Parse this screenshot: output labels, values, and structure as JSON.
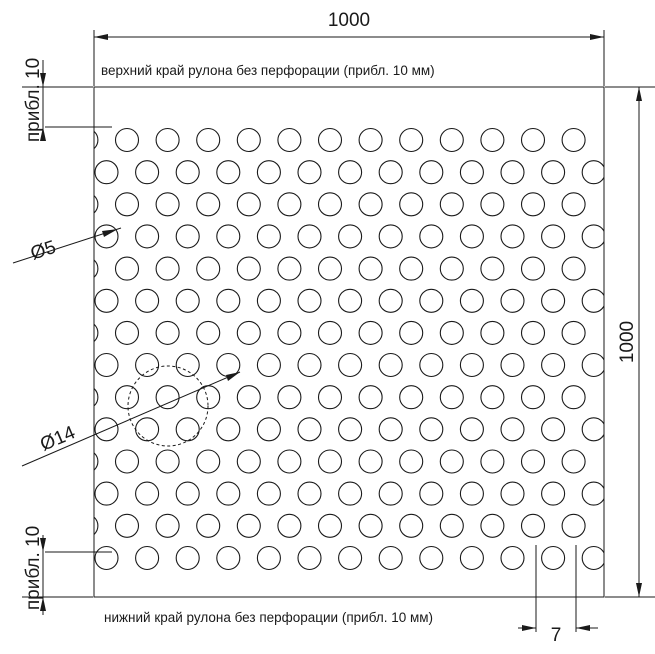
{
  "labels": {
    "width_dim": "1000",
    "height_dim": "1000",
    "top_margin_dim": "прибл. 10",
    "bottom_margin_dim": "прибл. 10",
    "hole_diameter": "Ø5",
    "pattern_circle": "Ø14",
    "pitch": "7",
    "top_edge_note": "верхний край рулона без перфорации (прибл. 10 мм)",
    "bottom_edge_note": "нижний край рулона без перфорации (прибл. 10 мм)"
  },
  "colors": {
    "line": "#1a1a1a",
    "background": "#ffffff"
  }
}
